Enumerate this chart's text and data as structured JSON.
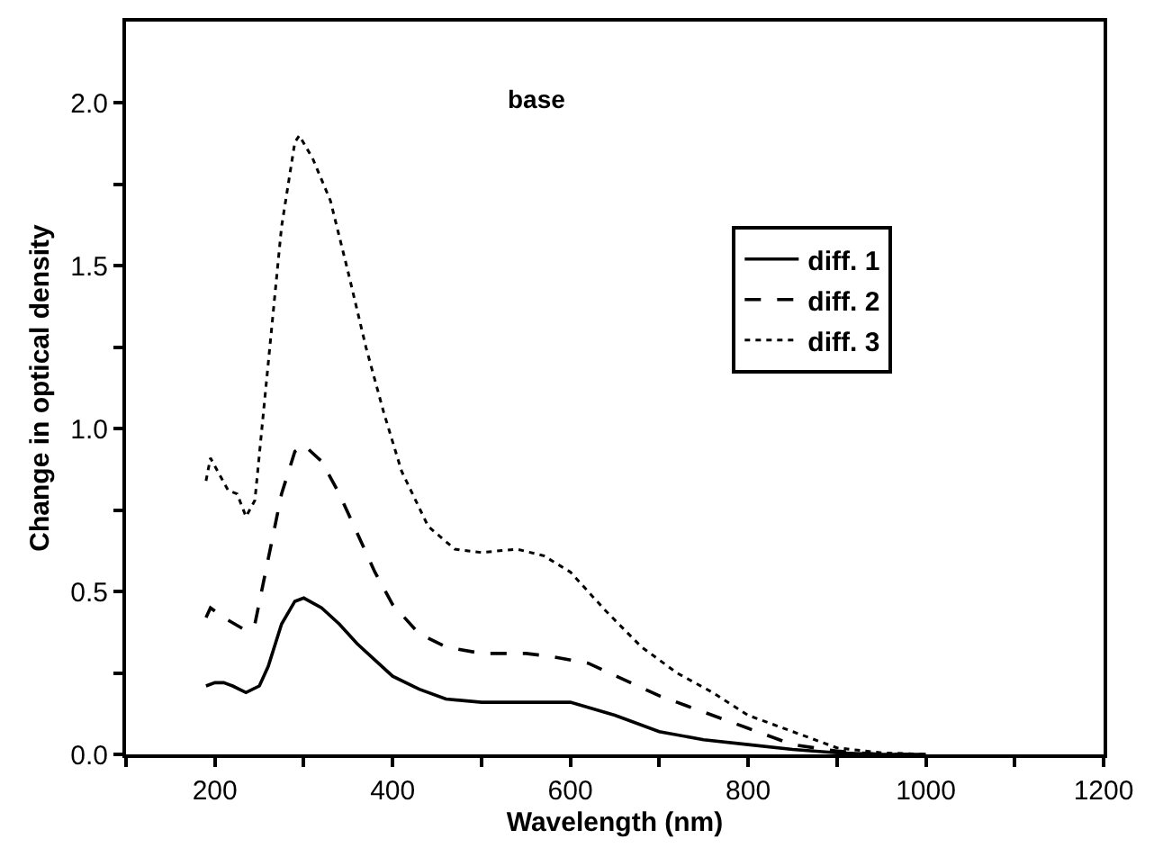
{
  "chart_data": {
    "type": "line",
    "xlabel": "Wavelength (nm)",
    "ylabel": "Change in optical density",
    "annotations": [
      "base"
    ],
    "xlim": [
      100,
      1200
    ],
    "xticks": [
      {
        "value": 100,
        "label": null
      },
      200,
      {
        "value": 300,
        "label": null
      },
      400,
      {
        "value": 500,
        "label": null
      },
      600,
      {
        "value": 700,
        "label": null
      },
      800,
      {
        "value": 900,
        "label": null
      },
      1000,
      {
        "value": 1100,
        "label": null
      },
      1200
    ],
    "ylim": [
      0,
      2.25
    ],
    "yticks": [
      {
        "value": 0,
        "label": "0.0"
      },
      {
        "value": 0.25,
        "label": null
      },
      0.5,
      {
        "value": 0.75,
        "label": null
      },
      {
        "value": 1,
        "label": "1.0"
      },
      {
        "value": 1.25,
        "label": null
      },
      1.5,
      {
        "value": 1.75,
        "label": null
      },
      {
        "value": 2,
        "label": "2.0"
      }
    ],
    "grid": false,
    "legend": "right",
    "marker": "none",
    "series": [
      {
        "name": "diff. 1",
        "color": "#000000",
        "line_style": "solid",
        "x": [
          190,
          200,
          210,
          220,
          235,
          250,
          260,
          275,
          290,
          300,
          320,
          340,
          360,
          380,
          400,
          430,
          460,
          500,
          550,
          600,
          650,
          700,
          750,
          800,
          850,
          900,
          950,
          1000
        ],
        "values": [
          0.21,
          0.22,
          0.22,
          0.21,
          0.19,
          0.21,
          0.27,
          0.4,
          0.47,
          0.48,
          0.45,
          0.4,
          0.34,
          0.29,
          0.24,
          0.2,
          0.17,
          0.16,
          0.16,
          0.16,
          0.12,
          0.07,
          0.045,
          0.03,
          0.015,
          0.005,
          0,
          0
        ]
      },
      {
        "name": "diff. 2",
        "color": "#000000",
        "line_style": "dashed",
        "x": [
          190,
          195,
          210,
          235,
          245,
          260,
          275,
          290,
          300,
          320,
          340,
          360,
          380,
          400,
          430,
          460,
          500,
          550,
          580,
          620,
          660,
          700,
          750,
          800,
          850,
          900,
          950,
          1000
        ],
        "values": [
          0.42,
          0.45,
          0.42,
          0.38,
          0.4,
          0.6,
          0.8,
          0.93,
          0.95,
          0.9,
          0.8,
          0.68,
          0.56,
          0.46,
          0.37,
          0.33,
          0.31,
          0.31,
          0.3,
          0.28,
          0.23,
          0.18,
          0.13,
          0.08,
          0.03,
          0.01,
          0,
          0
        ]
      },
      {
        "name": "diff. 3",
        "color": "#000000",
        "line_style": "dotted",
        "x": [
          190,
          195,
          205,
          215,
          225,
          235,
          245,
          260,
          275,
          290,
          295,
          310,
          330,
          350,
          370,
          390,
          410,
          440,
          470,
          500,
          540,
          570,
          600,
          640,
          680,
          720,
          760,
          800,
          850,
          900,
          950,
          1000
        ],
        "values": [
          0.84,
          0.91,
          0.86,
          0.81,
          0.8,
          0.73,
          0.78,
          1.2,
          1.62,
          1.88,
          1.9,
          1.83,
          1.7,
          1.48,
          1.25,
          1.05,
          0.87,
          0.7,
          0.63,
          0.62,
          0.63,
          0.61,
          0.56,
          0.44,
          0.33,
          0.25,
          0.19,
          0.12,
          0.07,
          0.02,
          0.005,
          0
        ]
      }
    ]
  }
}
